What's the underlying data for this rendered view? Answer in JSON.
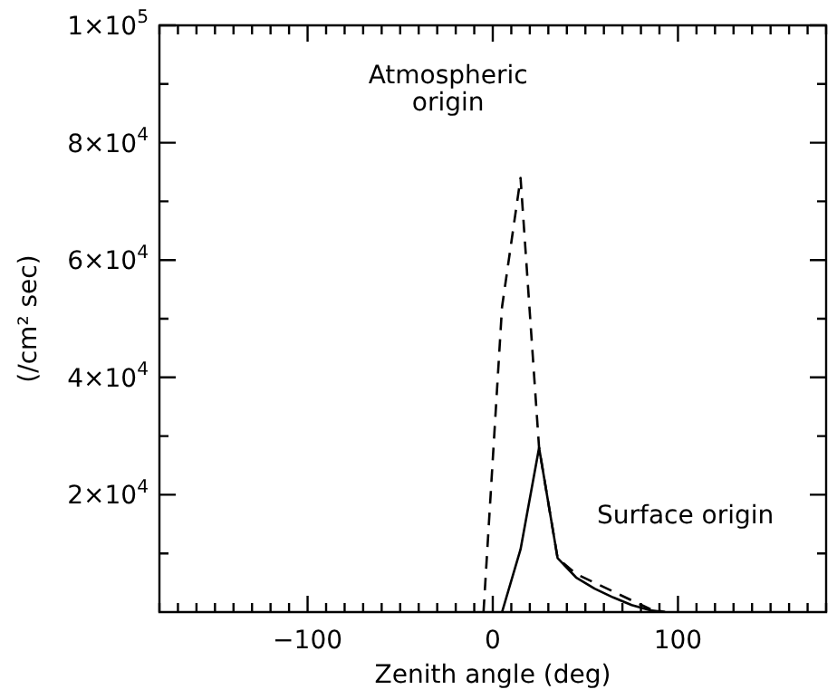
{
  "chart_data": {
    "type": "line",
    "xlabel": "Zenith angle (deg)",
    "ylabel": "(/cm² sec)",
    "xlim": [
      -180,
      180
    ],
    "xticks": [
      {
        "value": -180,
        "label": null
      },
      {
        "value": -170,
        "label": null
      },
      {
        "value": -160,
        "label": null
      },
      {
        "value": -150,
        "label": null
      },
      {
        "value": -140,
        "label": null
      },
      {
        "value": -130,
        "label": null
      },
      {
        "value": -120,
        "label": null
      },
      {
        "value": -110,
        "label": null
      },
      {
        "value": -100,
        "label": "−100"
      },
      {
        "value": -90,
        "label": null
      },
      {
        "value": -80,
        "label": null
      },
      {
        "value": -70,
        "label": null
      },
      {
        "value": -60,
        "label": null
      },
      {
        "value": -50,
        "label": null
      },
      {
        "value": -40,
        "label": null
      },
      {
        "value": -30,
        "label": null
      },
      {
        "value": -20,
        "label": null
      },
      {
        "value": -10,
        "label": null
      },
      0,
      {
        "value": 10,
        "label": null
      },
      {
        "value": 20,
        "label": null
      },
      {
        "value": 30,
        "label": null
      },
      {
        "value": 40,
        "label": null
      },
      {
        "value": 50,
        "label": null
      },
      {
        "value": 60,
        "label": null
      },
      {
        "value": 70,
        "label": null
      },
      {
        "value": 80,
        "label": null
      },
      {
        "value": 90,
        "label": null
      },
      100,
      {
        "value": 110,
        "label": null
      },
      {
        "value": 120,
        "label": null
      },
      {
        "value": 130,
        "label": null
      },
      {
        "value": 140,
        "label": null
      },
      {
        "value": 150,
        "label": null
      },
      {
        "value": 160,
        "label": null
      },
      {
        "value": 170,
        "label": null
      },
      {
        "value": 180,
        "label": null
      }
    ],
    "ylim": [
      0,
      100000
    ],
    "yticks": [
      {
        "value": 10000,
        "label": null
      },
      {
        "value": 20000,
        "label": "2×10$^{4}$"
      },
      {
        "value": 30000,
        "label": null
      },
      {
        "value": 40000,
        "label": "4×10$^{4}$"
      },
      {
        "value": 50000,
        "label": null
      },
      {
        "value": 60000,
        "label": "6×10$^{4}$"
      },
      {
        "value": 70000,
        "label": null
      },
      {
        "value": 80000,
        "label": "8×10$^{4}$"
      },
      {
        "value": 90000,
        "label": null
      },
      {
        "value": 100000,
        "label": "1×10$^{5}$"
      }
    ],
    "marker": "none",
    "annotations": [
      "Atmospheric origin",
      "Surface origin"
    ],
    "series": [
      {
        "color": "#000000",
        "line_style": "dashed",
        "x": [
          -5,
          5,
          15,
          25,
          35,
          45,
          55,
          65,
          75,
          85,
          93
        ],
        "values": [
          0,
          52000,
          74000,
          28000,
          9200,
          6500,
          5000,
          3500,
          2000,
          500,
          0
        ]
      },
      {
        "color": "#000000",
        "line_style": "solid",
        "x": [
          5,
          15,
          25,
          35,
          45,
          55,
          65,
          75,
          85,
          93
        ],
        "values": [
          0,
          10700,
          28000,
          9200,
          5900,
          4000,
          2500,
          1200,
          300,
          0
        ]
      }
    ]
  }
}
